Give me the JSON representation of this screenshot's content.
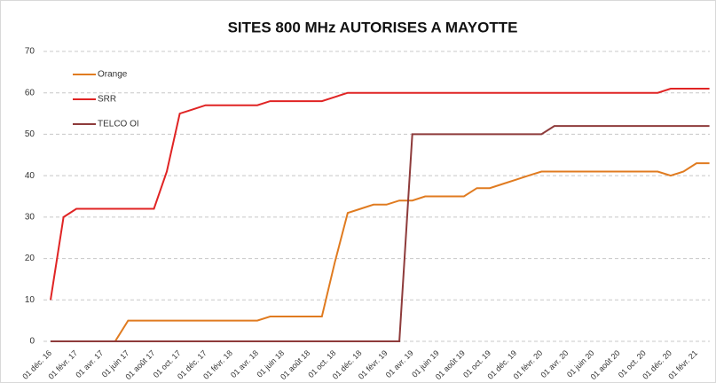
{
  "chart_data": {
    "type": "line",
    "title": "SITES 800 MHz AUTORISES A MAYOTTE",
    "categories": [
      "01 déc. 16",
      null,
      "01 févr. 17",
      null,
      "01 avr. 17",
      null,
      "01 juin 17",
      null,
      "01 août 17",
      null,
      "01 oct. 17",
      null,
      "01 déc. 17",
      null,
      "01 févr. 18",
      null,
      "01 avr. 18",
      null,
      "01 juin 18",
      null,
      "01 août 18",
      null,
      "01 oct. 18",
      null,
      "01 déc. 18",
      null,
      "01 févr. 19",
      null,
      "01 avr. 19",
      null,
      "01 juin 19",
      null,
      "01 août 19",
      null,
      "01 oct. 19",
      null,
      "01 déc. 19",
      null,
      "01 févr. 20",
      null,
      "01 avr. 20",
      null,
      "01 juin 20",
      null,
      "01 août 20",
      null,
      "01 oct. 20",
      null,
      "01 déc. 20",
      null,
      "01 févr. 21",
      null
    ],
    "series": [
      {
        "name": "Orange",
        "color": "#e07b20",
        "values": [
          0,
          0,
          0,
          0,
          0,
          0,
          5,
          5,
          5,
          5,
          5,
          5,
          5,
          5,
          5,
          5,
          5,
          6,
          6,
          6,
          6,
          6,
          19,
          31,
          32,
          33,
          33,
          34,
          34,
          35,
          35,
          35,
          35,
          37,
          37,
          38,
          39,
          40,
          41,
          41,
          41,
          41,
          41,
          41,
          41,
          41,
          41,
          41,
          40,
          41,
          43,
          43
        ]
      },
      {
        "name": "SRR",
        "color": "#e02424",
        "values": [
          10,
          30,
          32,
          32,
          32,
          32,
          32,
          32,
          32,
          41,
          55,
          56,
          57,
          57,
          57,
          57,
          57,
          58,
          58,
          58,
          58,
          58,
          59,
          60,
          60,
          60,
          60,
          60,
          60,
          60,
          60,
          60,
          60,
          60,
          60,
          60,
          60,
          60,
          60,
          60,
          60,
          60,
          60,
          60,
          60,
          60,
          60,
          60,
          61,
          61,
          61,
          61
        ]
      },
      {
        "name": "TELCO OI",
        "color": "#8e3b3b",
        "values": [
          0,
          0,
          0,
          0,
          0,
          0,
          0,
          0,
          0,
          0,
          0,
          0,
          0,
          0,
          0,
          0,
          0,
          0,
          0,
          0,
          0,
          0,
          0,
          0,
          0,
          0,
          0,
          0,
          50,
          50,
          50,
          50,
          50,
          50,
          50,
          50,
          50,
          50,
          50,
          52,
          52,
          52,
          52,
          52,
          52,
          52,
          52,
          52,
          52,
          52,
          52,
          52
        ]
      }
    ],
    "ylim": [
      0,
      70
    ],
    "yticks": [
      0,
      10,
      20,
      30,
      40,
      50,
      60,
      70
    ],
    "grid": true,
    "legend": "upper left"
  }
}
